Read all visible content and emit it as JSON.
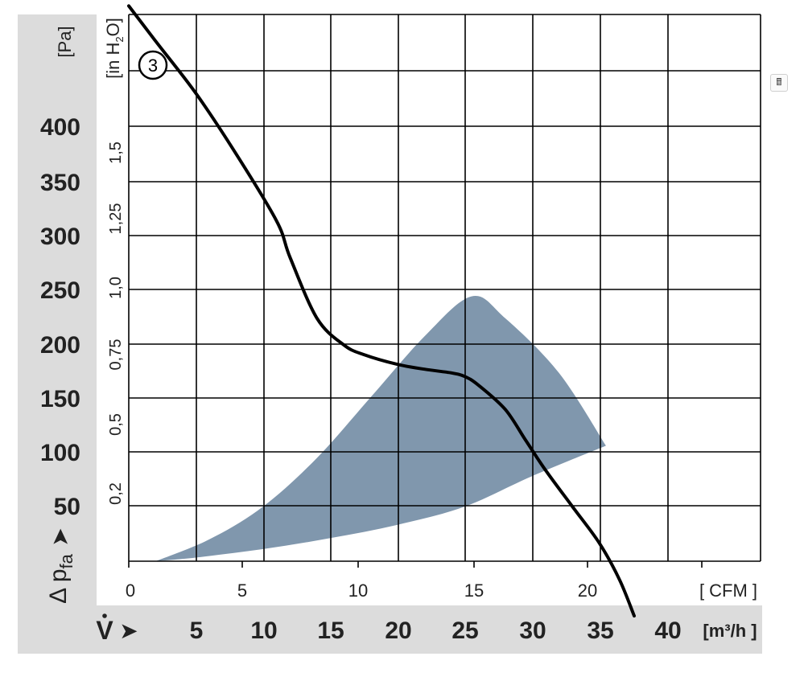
{
  "chart_data": {
    "type": "line",
    "axes": {
      "y_pa": {
        "unit": "[Pa]",
        "ticks": [
          "400",
          "350",
          "300",
          "250",
          "200",
          "150",
          "100",
          "50"
        ],
        "range": [
          0,
          450
        ]
      },
      "y_inh2o": {
        "unit_main": "[in H",
        "unit_sub": "2",
        "unit_end": "O]",
        "ticks": [
          "0,2",
          "0,5",
          "0,75",
          "1,0",
          "1,25",
          "1,5"
        ]
      },
      "x_cfm": {
        "unit": "[ CFM ]",
        "ticks": [
          "0",
          "5",
          "10",
          "15",
          "20"
        ],
        "range": [
          0,
          27.7
        ]
      },
      "x_m3h": {
        "unit": "[m³/h ]",
        "ticks": [
          "5",
          "10",
          "15",
          "20",
          "25",
          "30",
          "35",
          "40"
        ],
        "range": [
          0,
          47
        ]
      }
    },
    "y_label": {
      "main": "Δ p",
      "sub": "fa",
      "arrow": "➤"
    },
    "x_label": {
      "main": "V",
      "arrow": "➤"
    },
    "curve_label": "3",
    "series": [
      {
        "x_m3h": [
          0,
          2,
          5,
          8,
          11,
          12,
          14,
          16,
          17.5,
          20,
          22,
          24,
          25,
          26,
          28,
          29.5,
          31,
          33,
          35,
          36.5,
          37.6
        ],
        "y_pa": [
          457,
          428,
          385,
          335,
          280,
          250,
          200,
          178,
          170,
          162,
          158,
          155,
          152,
          145,
          125,
          100,
          75,
          45,
          15,
          -15,
          -45
        ]
      }
    ],
    "shaded_region": {
      "upper": {
        "x_m3h": [
          2,
          6,
          10,
          14,
          18,
          22,
          25.5,
          28,
          32,
          35.5
        ],
        "y_pa": [
          0,
          18,
          45,
          85,
          135,
          185,
          218,
          200,
          155,
          95
        ]
      },
      "lower": {
        "x_m3h": [
          35.5,
          30,
          25,
          20,
          15,
          10,
          5,
          2
        ],
        "y_pa": [
          95,
          70,
          45,
          30,
          19,
          10,
          3,
          0
        ]
      },
      "color": "#8097ad"
    },
    "colors": {
      "curve": "#000000",
      "band": "#dcdcdc",
      "grid": "#000000"
    },
    "grid": true,
    "title": "",
    "icon": "calculator-icon"
  }
}
